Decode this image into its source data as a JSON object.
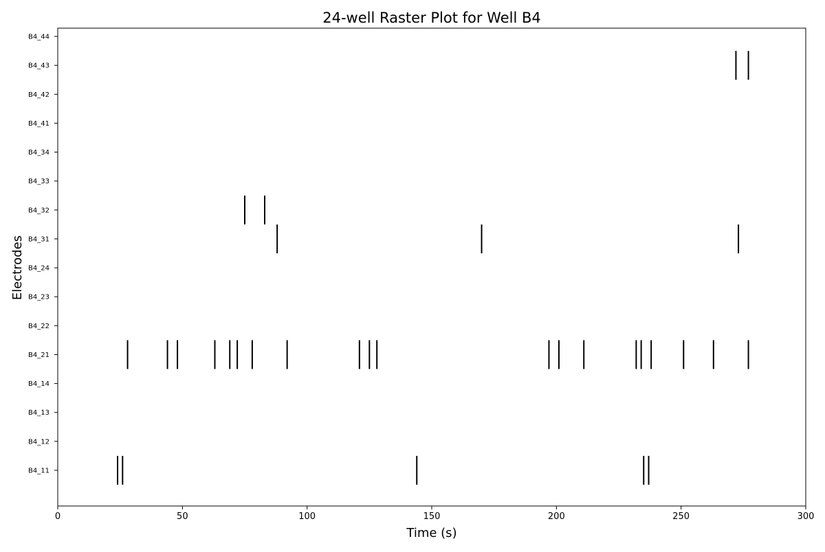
{
  "chart_data": {
    "type": "raster",
    "title": "24-well Raster Plot for Well B4",
    "xlabel": "Time (s)",
    "ylabel": "Electrodes",
    "xlim": [
      0,
      300
    ],
    "xticks": [
      0,
      50,
      100,
      150,
      200,
      250,
      300
    ],
    "grid": false,
    "colors": {
      "spike": "#000000",
      "frame": "#000000",
      "text": "#000000",
      "background": "#ffffff"
    },
    "electrodes": [
      {
        "name": "B4_11",
        "spikes": [
          24,
          26,
          144,
          235,
          237
        ]
      },
      {
        "name": "B4_12",
        "spikes": []
      },
      {
        "name": "B4_13",
        "spikes": []
      },
      {
        "name": "B4_14",
        "spikes": []
      },
      {
        "name": "B4_21",
        "spikes": [
          28,
          44,
          48,
          63,
          69,
          72,
          78,
          92,
          121,
          125,
          128,
          197,
          201,
          211,
          232,
          234,
          238,
          251,
          263,
          277
        ]
      },
      {
        "name": "B4_22",
        "spikes": []
      },
      {
        "name": "B4_23",
        "spikes": []
      },
      {
        "name": "B4_24",
        "spikes": []
      },
      {
        "name": "B4_31",
        "spikes": [
          88,
          170,
          273
        ]
      },
      {
        "name": "B4_32",
        "spikes": [
          75,
          83
        ]
      },
      {
        "name": "B4_33",
        "spikes": []
      },
      {
        "name": "B4_34",
        "spikes": []
      },
      {
        "name": "B4_41",
        "spikes": []
      },
      {
        "name": "B4_42",
        "spikes": []
      },
      {
        "name": "B4_43",
        "spikes": [
          272,
          277
        ]
      },
      {
        "name": "B4_44",
        "spikes": []
      }
    ]
  }
}
